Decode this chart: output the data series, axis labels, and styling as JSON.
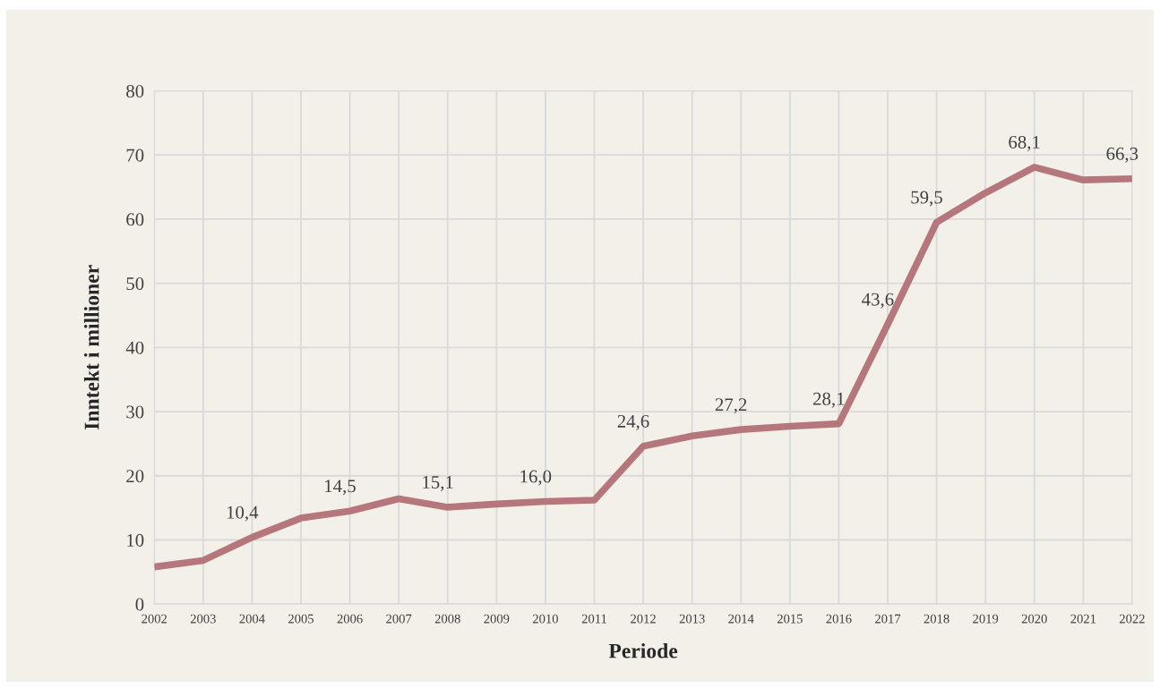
{
  "chart_data": {
    "type": "line",
    "xlabel": "Periode",
    "ylabel": "Inntekt i millioner",
    "categories": [
      "2002",
      "2003",
      "2004",
      "2005",
      "2006",
      "2007",
      "2008",
      "2009",
      "2010",
      "2011",
      "2012",
      "2013",
      "2014",
      "2015",
      "2016",
      "2017",
      "2018",
      "2019",
      "2020",
      "2021",
      "2022"
    ],
    "series": [
      {
        "color": "#b5777c",
        "values": [
          5.8,
          6.8,
          10.4,
          13.4,
          14.5,
          16.4,
          15.1,
          15.6,
          16.0,
          16.2,
          24.6,
          26.2,
          27.2,
          27.7,
          28.1,
          43.6,
          59.5,
          64.1,
          68.1,
          66.1,
          66.3
        ],
        "value_labels": [
          null,
          null,
          "10,4",
          null,
          "14,5",
          null,
          "15,1",
          null,
          "16,0",
          null,
          "24,6",
          null,
          "27,2",
          null,
          "28,1",
          "43,6",
          "59,5",
          null,
          "68,1",
          null,
          "66,3"
        ]
      }
    ],
    "ylim": [
      0,
      80
    ],
    "yticks": [
      0,
      10,
      20,
      30,
      40,
      50,
      60,
      70,
      80
    ],
    "grid": true,
    "marker": "none",
    "line_style": "solid",
    "legend": false
  }
}
